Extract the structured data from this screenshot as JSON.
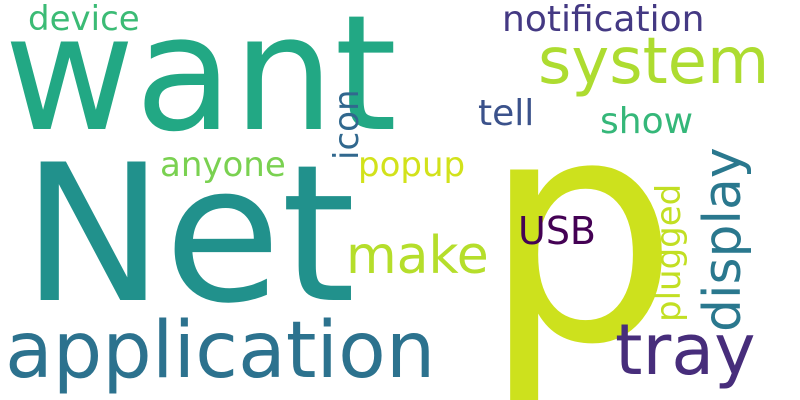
{
  "words": {
    "want": {
      "text": "want",
      "color": "#22a884"
    },
    "net": {
      "text": "Net",
      "color": "#21918c"
    },
    "p": {
      "text": "p",
      "color": "#cde11d"
    },
    "application": {
      "text": "application",
      "color": "#2c728e"
    },
    "tray": {
      "text": "tray",
      "color": "#472d7b"
    },
    "system": {
      "text": "system",
      "color": "#addc30"
    },
    "notification": {
      "text": "notification",
      "color": "#443983"
    },
    "device": {
      "text": "device",
      "color": "#3bbb75"
    },
    "tell": {
      "text": "tell",
      "color": "#3b528b"
    },
    "show": {
      "text": "show",
      "color": "#35b779"
    },
    "anyone": {
      "text": "anyone",
      "color": "#7ad151"
    },
    "popup": {
      "text": "popup",
      "color": "#d2e21b"
    },
    "make": {
      "text": "make",
      "color": "#b5de2b"
    },
    "usb": {
      "text": "USB",
      "color": "#440154"
    },
    "icon": {
      "text": "icon",
      "color": "#31688e"
    },
    "plugged": {
      "text": "plugged",
      "color": "#c2df23"
    },
    "display": {
      "text": "display",
      "color": "#2a788e"
    }
  }
}
